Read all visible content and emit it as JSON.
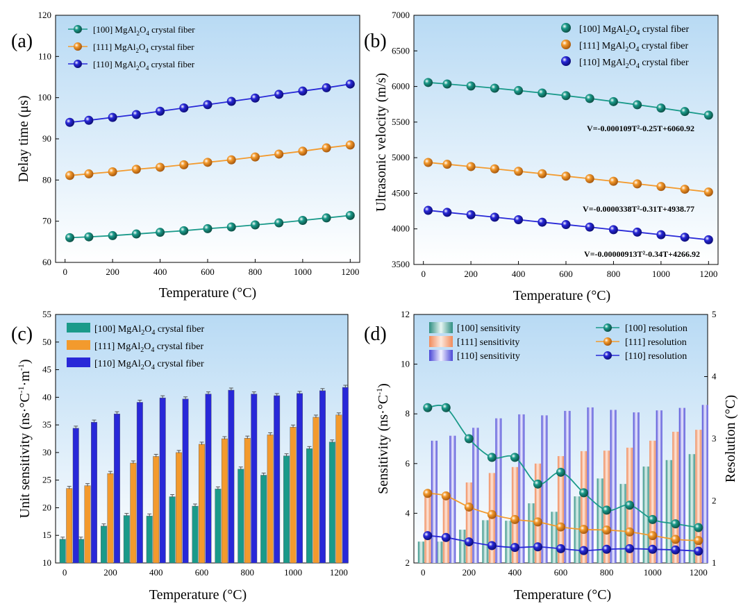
{
  "colors": {
    "s100": "#1a9a8a",
    "s111": "#f39a2d",
    "s110": "#2828d8",
    "bg_top": "#b8daf4",
    "bg_bottom": "#ffffff",
    "eq100": "#138a78",
    "eq111": "#e8901c",
    "eq110": "#1c1cc0"
  },
  "chart_data": [
    {
      "type": "line",
      "panel_label": "(a)",
      "xlabel": "Temperature (°C)",
      "ylabel": "Delay time (μs)",
      "xlim": [
        -40,
        1240
      ],
      "ylim": [
        60,
        120
      ],
      "xticks": [
        0,
        200,
        400,
        600,
        800,
        1000,
        1200
      ],
      "yticks": [
        60,
        70,
        80,
        90,
        100,
        110,
        120
      ],
      "x": [
        20,
        100,
        200,
        300,
        400,
        500,
        600,
        700,
        800,
        900,
        1000,
        1100,
        1200
      ],
      "legend_position": "top-left",
      "series": [
        {
          "name": "[100] MgAl2O4 crystal fiber",
          "key": "s100",
          "values": [
            66.0,
            66.2,
            66.5,
            66.9,
            67.3,
            67.7,
            68.2,
            68.6,
            69.1,
            69.6,
            70.2,
            70.8,
            71.4
          ]
        },
        {
          "name": "[111] MgAl2O4 crystal fiber",
          "key": "s111",
          "values": [
            81.1,
            81.5,
            82.0,
            82.6,
            83.1,
            83.7,
            84.3,
            84.9,
            85.6,
            86.3,
            87.0,
            87.8,
            88.5
          ]
        },
        {
          "name": "[110] MgAl2O4 crystal fiber",
          "key": "s110",
          "values": [
            94.0,
            94.5,
            95.2,
            95.9,
            96.7,
            97.5,
            98.3,
            99.1,
            99.9,
            100.8,
            101.6,
            102.4,
            103.3
          ]
        }
      ]
    },
    {
      "type": "line",
      "panel_label": "(b)",
      "xlabel": "Temperature (°C)",
      "ylabel": "Ultrasonic velocity (m/s)",
      "xlim": [
        -40,
        1240
      ],
      "ylim": [
        3500,
        7000
      ],
      "xticks": [
        0,
        200,
        400,
        600,
        800,
        1000,
        1200
      ],
      "yticks": [
        3500,
        4000,
        4500,
        5000,
        5500,
        6000,
        6500,
        7000
      ],
      "x": [
        20,
        100,
        200,
        300,
        400,
        500,
        600,
        700,
        800,
        900,
        1000,
        1100,
        1200
      ],
      "legend_position": "top-right",
      "series": [
        {
          "name": "[100] MgAl2O4 crystal fiber",
          "key": "s100",
          "equation": "V=-0.000109T²-0.25T+6060.92",
          "values": [
            6056,
            6035,
            6007,
            5976,
            5943,
            5908,
            5871,
            5831,
            5788,
            5743,
            5697,
            5648,
            5597
          ]
        },
        {
          "name": "[111] MgAl2O4 crystal fiber",
          "key": "s111",
          "equation": "V=-0.0000338T²-0.31T+4938.77",
          "values": [
            4933,
            4907,
            4875,
            4843,
            4809,
            4775,
            4740,
            4705,
            4669,
            4632,
            4595,
            4557,
            4518
          ]
        },
        {
          "name": "[110] MgAl2O4 crystal fiber",
          "key": "s110",
          "equation": "V=-0.00000913T²-0.34T+4266.92",
          "values": [
            4260,
            4232,
            4198,
            4164,
            4129,
            4094,
            4060,
            4025,
            3989,
            3954,
            3918,
            3883,
            3847
          ]
        }
      ]
    },
    {
      "type": "bar",
      "panel_label": "(c)",
      "xlabel": "Temperature (°C)",
      "ylabel": "Unit sensitivity (ns·°C⁻¹·m⁻¹)",
      "xlim": [
        -40,
        1240
      ],
      "ylim": [
        10,
        55
      ],
      "xticks": [
        0,
        200,
        400,
        600,
        800,
        1000,
        1200
      ],
      "yticks": [
        10,
        15,
        20,
        25,
        30,
        35,
        40,
        45,
        50,
        55
      ],
      "categories": [
        20,
        100,
        200,
        300,
        400,
        500,
        600,
        700,
        800,
        900,
        1000,
        1100,
        1200
      ],
      "legend_position": "top-left",
      "series": [
        {
          "name": "[100] MgAl2O4 crystal fiber",
          "key": "s100",
          "values": [
            14.3,
            14.3,
            16.7,
            18.6,
            18.5,
            22.0,
            20.3,
            23.4,
            27.0,
            25.9,
            29.4,
            30.7,
            31.9
          ]
        },
        {
          "name": "[111] MgAl2O4 crystal fiber",
          "key": "s111",
          "values": [
            23.5,
            24.0,
            26.2,
            28.1,
            29.3,
            30.0,
            31.5,
            32.5,
            32.6,
            33.2,
            34.6,
            36.4,
            36.8
          ]
        },
        {
          "name": "[110] MgAl2O4 crystal fiber",
          "key": "s110",
          "values": [
            34.4,
            35.5,
            37.0,
            39.1,
            39.9,
            39.7,
            40.6,
            41.3,
            40.6,
            40.3,
            40.7,
            41.2,
            41.8
          ]
        }
      ]
    },
    {
      "type": "bar",
      "panel_label": "(d)",
      "xlabel": "Temperature (°C)",
      "ylabel": "Sensitivity (ns·°C⁻¹)",
      "y2label": "Resolution (°C)",
      "xlim": [
        -40,
        1240
      ],
      "ylim": [
        2,
        12
      ],
      "y2lim": [
        1,
        5
      ],
      "xticks": [
        0,
        200,
        400,
        600,
        800,
        1000,
        1200
      ],
      "yticks": [
        2,
        4,
        6,
        8,
        10,
        12
      ],
      "y2ticks": [
        1,
        2,
        3,
        4,
        5
      ],
      "categories": [
        20,
        100,
        200,
        300,
        400,
        500,
        600,
        700,
        800,
        900,
        1000,
        1100,
        1200
      ],
      "legend_position": "top",
      "series": [
        {
          "name": "[100] sensitivity",
          "key": "s100",
          "values": [
            2.86,
            2.86,
            3.34,
            3.72,
            3.7,
            4.4,
            4.06,
            4.68,
            5.4,
            5.18,
            5.88,
            6.14,
            6.38
          ]
        },
        {
          "name": "[111] sensitivity",
          "key": "s111",
          "values": [
            4.7,
            4.8,
            5.24,
            5.62,
            5.86,
            6.0,
            6.3,
            6.5,
            6.52,
            6.64,
            6.92,
            7.28,
            7.36
          ]
        },
        {
          "name": "[110] sensitivity",
          "key": "s110",
          "values": [
            6.92,
            7.12,
            7.44,
            7.82,
            7.98,
            7.94,
            8.12,
            8.26,
            8.16,
            8.06,
            8.14,
            8.24,
            8.36
          ]
        }
      ],
      "resolution_series": [
        {
          "name": "[100] resolution",
          "key": "s100",
          "values": [
            3.5,
            3.5,
            3.0,
            2.7,
            2.7,
            2.27,
            2.46,
            2.13,
            1.85,
            1.93,
            1.7,
            1.63,
            1.57
          ]
        },
        {
          "name": "[111] resolution",
          "key": "s111",
          "values": [
            2.12,
            2.08,
            1.9,
            1.78,
            1.7,
            1.66,
            1.58,
            1.54,
            1.53,
            1.5,
            1.44,
            1.38,
            1.36
          ]
        },
        {
          "name": "[110] resolution",
          "key": "s110",
          "values": [
            1.44,
            1.41,
            1.34,
            1.28,
            1.25,
            1.26,
            1.23,
            1.2,
            1.22,
            1.23,
            1.22,
            1.21,
            1.19
          ]
        }
      ]
    }
  ]
}
